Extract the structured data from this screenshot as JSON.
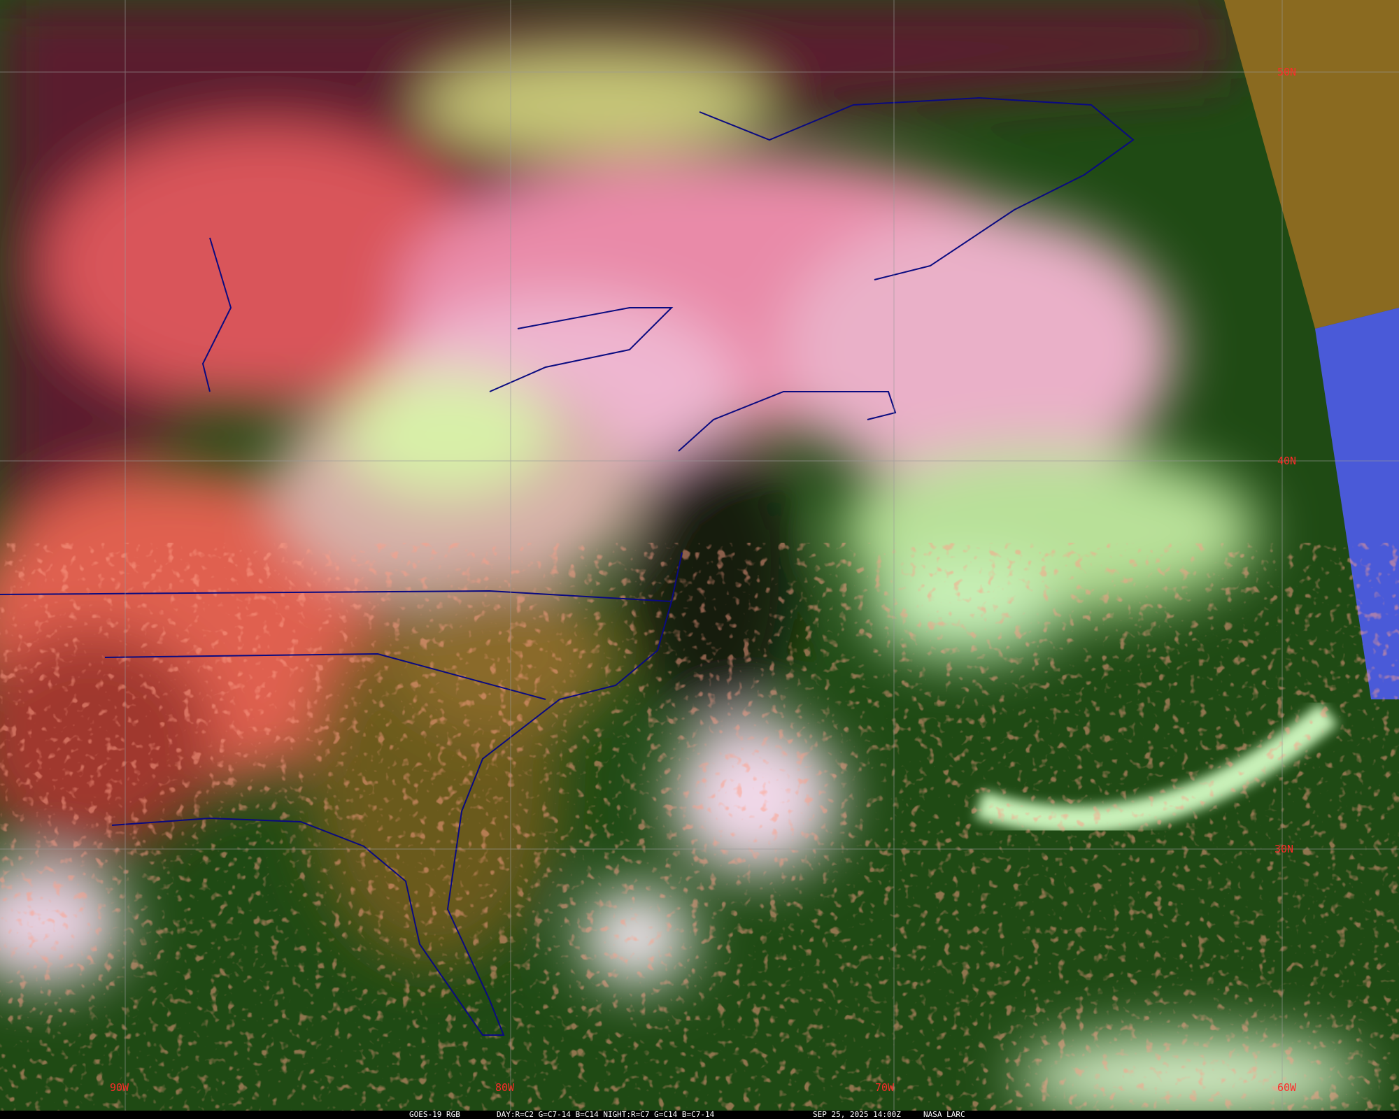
{
  "image": {
    "type": "satellite-rgb-composite",
    "region": "Eastern United States and Western Atlantic",
    "colors": {
      "land_clear_north": "#5a1a2e",
      "cloud_pink": "#e98aa8",
      "cloud_salmon": "#e0604f",
      "cloud_white": "#f2e6ee",
      "cloud_light_green": "#c8f0a8",
      "ocean_green": "#1f4a14",
      "boundaries": "#0a0a80",
      "gridlines": "#9a9a9a",
      "grid_labels": "#ff2a2a",
      "edge_orange": "#8a6a20",
      "edge_blue": "#4a5ad8"
    }
  },
  "grid": {
    "longitude_labels": [
      "90W",
      "80W",
      "70W",
      "60W"
    ],
    "latitude_labels": [
      "50N",
      "40N",
      "30N"
    ]
  },
  "caption": {
    "product": "GOES-19 RGB",
    "recipe": "DAY:R=C2 G=C7-14 B=C14 NIGHT:R=C7 G=C14 B=C7-14",
    "datetime": "SEP 25, 2025 14:00Z",
    "source": "NASA LARC"
  }
}
